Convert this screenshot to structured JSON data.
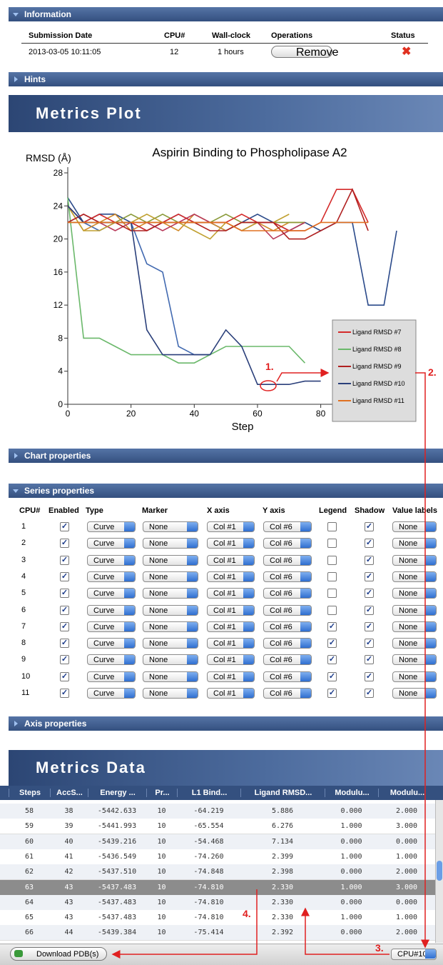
{
  "information": {
    "title": "Information",
    "columns": [
      "Submission Date",
      "CPU#",
      "Wall-clock",
      "Operations",
      "Status"
    ],
    "row": [
      "2013-03-05 10:11:05",
      12,
      "1 hours",
      "Remove"
    ]
  },
  "hints": "Hints",
  "metrics_plot": "Metrics Plot",
  "chart_data": {
    "type": "line",
    "title": "Aspirin Binding to Phospholipase A2",
    "y_label": "RMSD (Å)",
    "x_label": "Step",
    "xlim": [
      0,
      104
    ],
    "ylim": [
      0,
      28
    ],
    "xticks": [
      0,
      20,
      40,
      60,
      80,
      100
    ],
    "yticks": [
      0,
      4,
      8,
      12,
      16,
      20,
      24,
      28
    ],
    "x": [
      0,
      5,
      10,
      15,
      20,
      25,
      30,
      35,
      40,
      45,
      50,
      55,
      60,
      65,
      70,
      75,
      80,
      85,
      90,
      95,
      100,
      104
    ],
    "series": [
      {
        "color": "#2b4a8a",
        "values": [
          25,
          22,
          23,
          23,
          22,
          21,
          22,
          23,
          22,
          22,
          21,
          22,
          23,
          22,
          21,
          22,
          21,
          22,
          22,
          12,
          12,
          21
        ]
      },
      {
        "color": "#4169b0",
        "values": [
          24,
          22,
          21,
          22,
          22,
          17,
          16,
          7,
          6,
          6,
          null,
          null,
          null,
          null,
          null,
          null,
          null,
          null,
          null,
          null,
          null,
          null
        ]
      },
      {
        "color": "#d08a2a",
        "values": [
          24,
          21,
          22,
          23,
          21,
          22,
          22,
          21,
          23,
          22,
          21,
          22,
          22,
          21,
          22,
          22,
          null,
          null,
          null,
          null,
          null,
          null
        ]
      },
      {
        "color": "#8a9a3a",
        "values": [
          22,
          22,
          22,
          22,
          23,
          22,
          23,
          22,
          22,
          22,
          23,
          22,
          22,
          22,
          22,
          22,
          null,
          null,
          null,
          null,
          null,
          null
        ]
      },
      {
        "color": "#b83a5a",
        "values": [
          22,
          23,
          22,
          21,
          22,
          22,
          21,
          22,
          23,
          22,
          22,
          21,
          22,
          20,
          21,
          22,
          null,
          null,
          null,
          null,
          null,
          null
        ]
      },
      {
        "color": "#c0a030",
        "values": [
          24,
          21,
          21,
          22,
          22,
          23,
          22,
          22,
          21,
          20,
          22,
          21,
          22,
          22,
          23,
          null,
          null,
          null,
          null,
          null,
          null,
          null
        ]
      },
      {
        "name": "Ligand RMSD #7",
        "color": "#d42a2a",
        "values": [
          24,
          22,
          23,
          22,
          22,
          21,
          22,
          23,
          22,
          22,
          22,
          23,
          22,
          22,
          21,
          21,
          22,
          26,
          26,
          22,
          null,
          null
        ]
      },
      {
        "name": "Ligand RMSD #8",
        "color": "#6ab86a",
        "values": [
          25,
          8,
          8,
          7,
          6,
          6,
          6,
          5,
          5,
          6,
          7,
          7,
          7,
          7,
          7,
          5,
          null,
          null,
          null,
          null,
          null,
          null
        ]
      },
      {
        "name": "Ligand RMSD #9",
        "color": "#b02020",
        "values": [
          22,
          23,
          22,
          22,
          21,
          21,
          22,
          22,
          22,
          21,
          21,
          22,
          22,
          22,
          20,
          20,
          21,
          22,
          26,
          21,
          null,
          null
        ]
      },
      {
        "name": "Ligand RMSD #10",
        "color": "#2a3f7a",
        "values": [
          24,
          22,
          22,
          22,
          22,
          9,
          6,
          6,
          6,
          6,
          9,
          7,
          2.4,
          2.4,
          2.4,
          2.8,
          2.8,
          null,
          null,
          null,
          null,
          null
        ]
      },
      {
        "name": "Ligand RMSD #11",
        "color": "#e07020",
        "values": [
          22,
          22,
          22,
          22,
          22,
          22,
          22,
          22,
          22,
          22,
          22,
          21,
          21,
          21,
          21,
          21,
          22,
          22,
          22,
          22,
          null,
          null
        ]
      }
    ]
  },
  "annotations": [
    "1.",
    "2.",
    "3.",
    "4."
  ],
  "chart_properties": "Chart properties",
  "series_properties": {
    "title": "Series properties",
    "columns": [
      "CPU#",
      "Enabled",
      "Type",
      "Marker",
      "X axis",
      "Y axis",
      "Legend",
      "Shadow",
      "Value labels"
    ],
    "rows": [
      [
        1,
        true,
        "Curve",
        "None",
        "Col #1",
        "Col #6",
        false,
        true,
        "None"
      ],
      [
        2,
        true,
        "Curve",
        "None",
        "Col #1",
        "Col #6",
        false,
        true,
        "None"
      ],
      [
        3,
        true,
        "Curve",
        "None",
        "Col #1",
        "Col #6",
        false,
        true,
        "None"
      ],
      [
        4,
        true,
        "Curve",
        "None",
        "Col #1",
        "Col #6",
        false,
        true,
        "None"
      ],
      [
        5,
        true,
        "Curve",
        "None",
        "Col #1",
        "Col #6",
        false,
        true,
        "None"
      ],
      [
        6,
        true,
        "Curve",
        "None",
        "Col #1",
        "Col #6",
        false,
        true,
        "None"
      ],
      [
        7,
        true,
        "Curve",
        "None",
        "Col #1",
        "Col #6",
        true,
        true,
        "None"
      ],
      [
        8,
        true,
        "Curve",
        "None",
        "Col #1",
        "Col #6",
        true,
        true,
        "None"
      ],
      [
        9,
        true,
        "Curve",
        "None",
        "Col #1",
        "Col #6",
        true,
        true,
        "None"
      ],
      [
        10,
        true,
        "Curve",
        "None",
        "Col #1",
        "Col #6",
        true,
        true,
        "None"
      ],
      [
        11,
        true,
        "Curve",
        "None",
        "Col #1",
        "Col #6",
        true,
        true,
        "None"
      ]
    ]
  },
  "axis_properties": "Axis properties",
  "metrics_data": {
    "title": "Metrics Data",
    "columns": [
      "Steps",
      "AccS...",
      "Energy ...",
      "Pr...",
      "L1 Bind...",
      "Ligand RMSD...",
      "Modulu...",
      "Modulu..."
    ],
    "rows": [
      [
        "58",
        "38",
        "-5442.633",
        "10",
        "-64.219",
        "5.886",
        "0.000",
        "2.000"
      ],
      [
        "59",
        "39",
        "-5441.993",
        "10",
        "-65.554",
        "6.276",
        "1.000",
        "3.000"
      ],
      [
        "60",
        "40",
        "-5439.216",
        "10",
        "-54.468",
        "7.134",
        "0.000",
        "0.000"
      ],
      [
        "61",
        "41",
        "-5436.549",
        "10",
        "-74.260",
        "2.399",
        "1.000",
        "1.000"
      ],
      [
        "62",
        "42",
        "-5437.510",
        "10",
        "-74.848",
        "2.398",
        "0.000",
        "2.000"
      ],
      [
        "63",
        "43",
        "-5437.483",
        "10",
        "-74.810",
        "2.330",
        "1.000",
        "3.000"
      ],
      [
        "64",
        "43",
        "-5437.483",
        "10",
        "-74.810",
        "2.330",
        "0.000",
        "0.000"
      ],
      [
        "65",
        "43",
        "-5437.483",
        "10",
        "-74.810",
        "2.330",
        "1.000",
        "1.000"
      ],
      [
        "66",
        "44",
        "-5439.384",
        "10",
        "-75.414",
        "2.392",
        "0.000",
        "2.000"
      ]
    ],
    "selected_row": 5
  },
  "download_button": "Download PDB(s)",
  "cpu_select": "CPU#10"
}
